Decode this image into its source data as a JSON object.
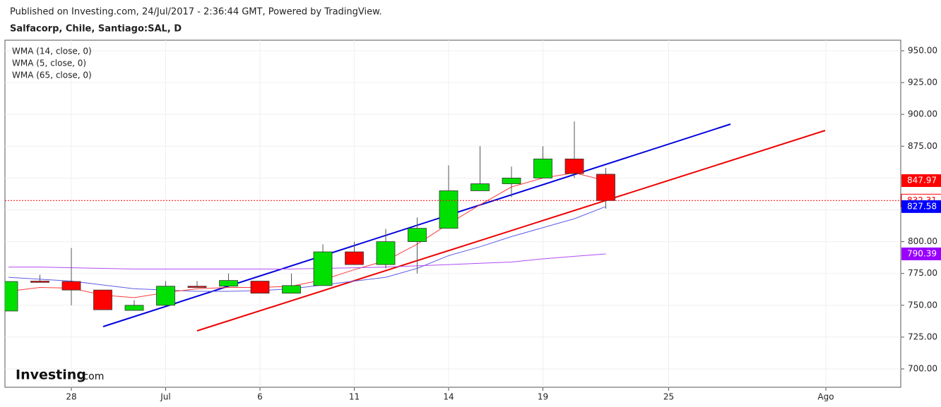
{
  "header": "Published on Investing.com, 24/Jul/2017 - 2:36:44 GMT, Powered by TradingView.",
  "logo": {
    "brand": "Investing",
    "suffix": ".com"
  },
  "chart_data": {
    "type": "candlestick",
    "title": "Salfacorp, Chile, Santiago:SAL, D",
    "categories": [
      null,
      null,
      "28",
      null,
      null,
      "Jul",
      null,
      null,
      "6",
      null,
      null,
      "11",
      null,
      null,
      "14",
      null,
      null,
      "19",
      null,
      null,
      null,
      "25",
      null,
      null,
      null,
      null,
      "Ago",
      null,
      null
    ],
    "open": [
      745.5,
      769,
      768.7,
      762,
      746,
      750,
      765,
      765,
      769,
      759.5,
      765.5,
      792,
      782,
      800,
      810.5,
      840,
      845.5,
      850,
      865,
      853,
      null,
      null,
      null,
      null,
      null,
      null,
      null,
      null,
      null
    ],
    "high": [
      768.7,
      774,
      795,
      762,
      754,
      769,
      769,
      775,
      769,
      775,
      798,
      800,
      810,
      819,
      860,
      875,
      859,
      875,
      894.5,
      858,
      null,
      null,
      null,
      null,
      null,
      null,
      null,
      null,
      null
    ],
    "low": [
      745.5,
      768,
      750,
      746.5,
      746,
      750,
      764,
      765,
      759.5,
      759.5,
      765.5,
      782,
      779,
      775,
      810.5,
      840,
      835,
      850,
      850,
      826,
      null,
      null,
      null,
      null,
      null,
      null,
      null,
      null,
      null
    ],
    "close": [
      768.7,
      768,
      762,
      746.5,
      750,
      765,
      764,
      769.5,
      759.5,
      765.5,
      792,
      782,
      800,
      810.5,
      840,
      845.5,
      850,
      865,
      853.5,
      832.31,
      null,
      null,
      null,
      null,
      null,
      null,
      null,
      null,
      null
    ],
    "up_color": "#00e000",
    "down_color": "#ff0000",
    "series": [
      {
        "name": "WMA (14, close, 0)",
        "color": "#5c5ce6",
        "label_color": "#0000ff",
        "values": [
          772,
          770.5,
          769,
          766,
          763,
          762,
          761,
          761,
          761.5,
          763,
          766,
          769,
          772,
          779,
          789,
          796,
          804,
          811,
          818,
          827.58,
          null,
          null,
          null,
          null,
          null,
          null,
          null,
          null,
          null
        ]
      },
      {
        "name": "WMA (5, close, 0)",
        "color": "#ff3b3b",
        "label_color": "#ff0000",
        "values": [
          761,
          764,
          763.5,
          758,
          756,
          760,
          763,
          764,
          764,
          765,
          770,
          778,
          785,
          798,
          814,
          829,
          843,
          850,
          854,
          847.97,
          null,
          null,
          null,
          null,
          null,
          null,
          null,
          null,
          null
        ]
      },
      {
        "name": "WMA (65, close, 0)",
        "color": "#b04cf5",
        "label_color": "#9900ff",
        "values": [
          780,
          780,
          779.5,
          779,
          778.5,
          778.5,
          778.5,
          778.5,
          778.5,
          778.5,
          779,
          779.5,
          780,
          781,
          782,
          783,
          784,
          786.5,
          788.5,
          790.39,
          null,
          null,
          null,
          null,
          null,
          null,
          null,
          null,
          null
        ]
      }
    ],
    "ylim": [
      685.6,
      958.3
    ],
    "yticks": [
      {
        "value": 700,
        "label": "700.00"
      },
      {
        "value": 725,
        "label": "725.00"
      },
      {
        "value": 750,
        "label": "750.00"
      },
      {
        "value": 775,
        "label": "775.00"
      },
      {
        "value": 800,
        "label": "800.00"
      },
      {
        "value": 825,
        "label": "825.00"
      },
      {
        "value": 850,
        "label": "850.00"
      },
      {
        "value": 875,
        "label": "875.00"
      },
      {
        "value": 900,
        "label": "900.00"
      },
      {
        "value": 925,
        "label": "925.00"
      },
      {
        "value": 950,
        "label": "950.00"
      }
    ],
    "grid": true
  }
}
